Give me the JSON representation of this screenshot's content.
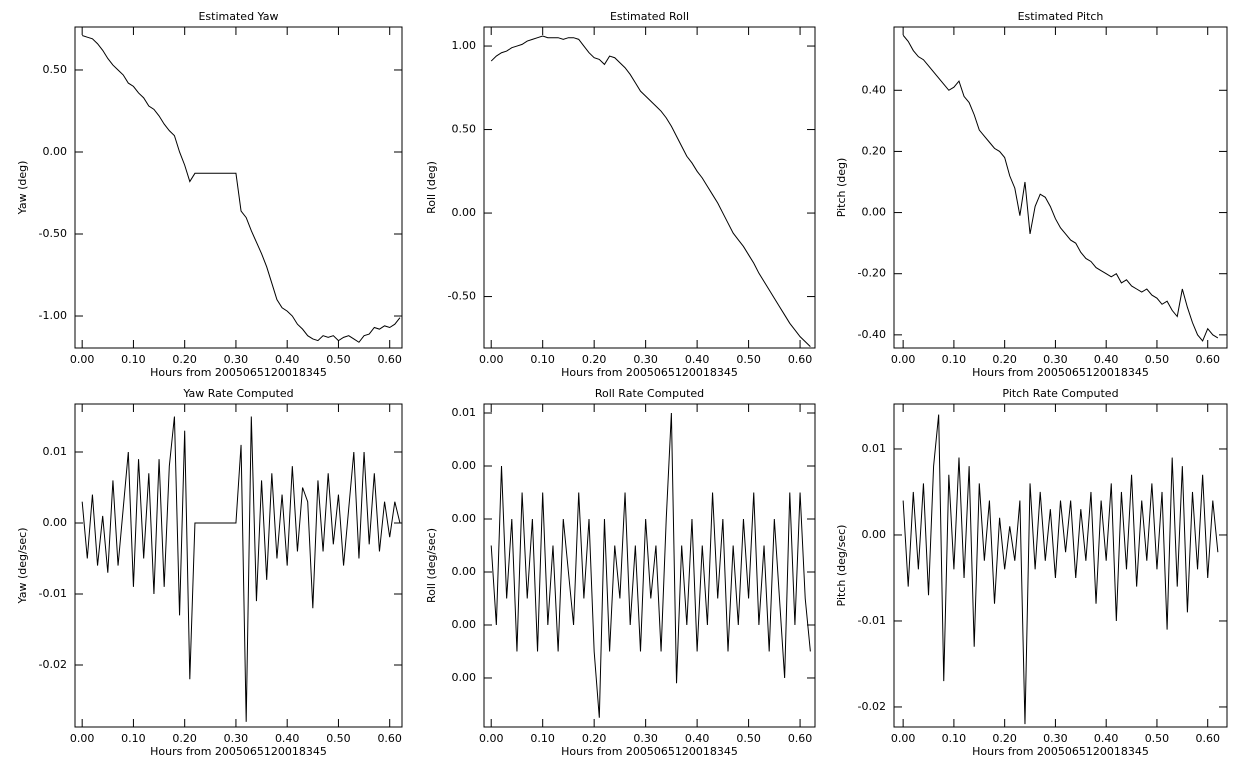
{
  "chart_data": [
    {
      "type": "line",
      "title": "Estimated Yaw",
      "xlabel": "Hours from 2005065120018345",
      "ylabel": "Yaw (deg)",
      "color": "#000000",
      "xlim": [
        -0.014,
        0.624
      ],
      "ylim": [
        -1.195,
        0.762
      ],
      "xticks": [
        {
          "value": 0,
          "label": "0.00"
        },
        {
          "value": 0.1,
          "label": "0.10"
        },
        {
          "value": 0.2,
          "label": "0.20"
        },
        {
          "value": 0.3,
          "label": "0.30"
        },
        {
          "value": 0.4,
          "label": "0.40"
        },
        {
          "value": 0.5,
          "label": "0.50"
        },
        {
          "value": 0.6,
          "label": "0.60"
        }
      ],
      "yticks": [
        {
          "value": 0.5,
          "label": "0.50"
        },
        {
          "value": 0,
          "label": "0.00"
        },
        {
          "value": -0.5,
          "label": "-0.50"
        },
        {
          "value": -1,
          "label": "-1.00"
        }
      ],
      "x": [
        0,
        0.01,
        0.02,
        0.03,
        0.04,
        0.05,
        0.06,
        0.07,
        0.08,
        0.09,
        0.1,
        0.11,
        0.12,
        0.13,
        0.14,
        0.15,
        0.16,
        0.17,
        0.18,
        0.19,
        0.2,
        0.21,
        0.22,
        0.23,
        0.24,
        0.25,
        0.26,
        0.27,
        0.28,
        0.29,
        0.3,
        0.31,
        0.32,
        0.33,
        0.34,
        0.35,
        0.36,
        0.37,
        0.38,
        0.39,
        0.4,
        0.41,
        0.42,
        0.43,
        0.44,
        0.45,
        0.46,
        0.47,
        0.48,
        0.49,
        0.5,
        0.51,
        0.52,
        0.53,
        0.54,
        0.55,
        0.56,
        0.57,
        0.58,
        0.59,
        0.6,
        0.61,
        0.62
      ],
      "values": [
        0.71,
        0.7,
        0.69,
        0.66,
        0.62,
        0.57,
        0.53,
        0.5,
        0.47,
        0.42,
        0.4,
        0.36,
        0.33,
        0.28,
        0.26,
        0.22,
        0.17,
        0.13,
        0.1,
        0.0,
        -0.08,
        -0.18,
        -0.13,
        -0.13,
        -0.13,
        -0.13,
        -0.13,
        -0.13,
        -0.13,
        -0.13,
        -0.13,
        -0.36,
        -0.4,
        -0.48,
        -0.55,
        -0.62,
        -0.7,
        -0.8,
        -0.9,
        -0.95,
        -0.97,
        -1.0,
        -1.05,
        -1.08,
        -1.12,
        -1.14,
        -1.15,
        -1.12,
        -1.13,
        -1.12,
        -1.15,
        -1.13,
        -1.12,
        -1.14,
        -1.16,
        -1.12,
        -1.11,
        -1.07,
        -1.08,
        -1.06,
        -1.07,
        -1.05,
        -1.01
      ]
    },
    {
      "type": "line",
      "title": "Estimated Roll",
      "xlabel": "Hours from 2005065120018345",
      "ylabel": "Roll (deg)",
      "color": "#000000",
      "xlim": [
        -0.014,
        0.629
      ],
      "ylim": [
        -0.808,
        1.114
      ],
      "xticks": [
        {
          "value": 0,
          "label": "0.00"
        },
        {
          "value": 0.1,
          "label": "0.10"
        },
        {
          "value": 0.2,
          "label": "0.20"
        },
        {
          "value": 0.3,
          "label": "0.30"
        },
        {
          "value": 0.4,
          "label": "0.40"
        },
        {
          "value": 0.5,
          "label": "0.50"
        },
        {
          "value": 0.6,
          "label": "0.60"
        }
      ],
      "yticks": [
        {
          "value": 1,
          "label": "1.00"
        },
        {
          "value": 0.5,
          "label": "0.50"
        },
        {
          "value": 0,
          "label": "0.00"
        },
        {
          "value": -0.5,
          "label": "-0.50"
        }
      ],
      "x": [
        0,
        0.01,
        0.02,
        0.03,
        0.04,
        0.05,
        0.06,
        0.07,
        0.08,
        0.09,
        0.1,
        0.11,
        0.12,
        0.13,
        0.14,
        0.15,
        0.16,
        0.17,
        0.18,
        0.19,
        0.2,
        0.21,
        0.22,
        0.23,
        0.24,
        0.25,
        0.26,
        0.27,
        0.28,
        0.29,
        0.3,
        0.31,
        0.32,
        0.33,
        0.34,
        0.35,
        0.36,
        0.37,
        0.38,
        0.39,
        0.4,
        0.41,
        0.42,
        0.43,
        0.44,
        0.45,
        0.46,
        0.47,
        0.48,
        0.49,
        0.5,
        0.51,
        0.52,
        0.53,
        0.54,
        0.55,
        0.56,
        0.57,
        0.58,
        0.59,
        0.6,
        0.61,
        0.62
      ],
      "values": [
        0.91,
        0.94,
        0.96,
        0.97,
        0.99,
        1.0,
        1.01,
        1.03,
        1.04,
        1.05,
        1.06,
        1.05,
        1.05,
        1.05,
        1.04,
        1.05,
        1.05,
        1.04,
        1.0,
        0.96,
        0.93,
        0.92,
        0.89,
        0.94,
        0.93,
        0.9,
        0.87,
        0.83,
        0.78,
        0.73,
        0.7,
        0.67,
        0.64,
        0.61,
        0.57,
        0.52,
        0.46,
        0.4,
        0.34,
        0.3,
        0.25,
        0.21,
        0.16,
        0.11,
        0.06,
        0.0,
        -0.06,
        -0.12,
        -0.16,
        -0.2,
        -0.25,
        -0.3,
        -0.36,
        -0.41,
        -0.46,
        -0.51,
        -0.56,
        -0.61,
        -0.66,
        -0.7,
        -0.74,
        -0.77,
        -0.8
      ]
    },
    {
      "type": "line",
      "title": "Estimated Pitch",
      "xlabel": "Hours from 2005065120018345",
      "ylabel": "Pitch (deg)",
      "color": "#000000",
      "xlim": [
        -0.018,
        0.638
      ],
      "ylim": [
        -0.443,
        0.607
      ],
      "xticks": [
        {
          "value": 0,
          "label": "0.00"
        },
        {
          "value": 0.1,
          "label": "0.10"
        },
        {
          "value": 0.2,
          "label": "0.20"
        },
        {
          "value": 0.3,
          "label": "0.30"
        },
        {
          "value": 0.4,
          "label": "0.40"
        },
        {
          "value": 0.5,
          "label": "0.50"
        },
        {
          "value": 0.6,
          "label": "0.60"
        }
      ],
      "yticks": [
        {
          "value": 0.4,
          "label": "0.40"
        },
        {
          "value": 0.2,
          "label": "0.20"
        },
        {
          "value": 0,
          "label": "0.00"
        },
        {
          "value": -0.2,
          "label": "-0.20"
        },
        {
          "value": -0.4,
          "label": "-0.40"
        }
      ],
      "x": [
        0,
        0.01,
        0.02,
        0.03,
        0.04,
        0.05,
        0.06,
        0.07,
        0.08,
        0.09,
        0.1,
        0.11,
        0.12,
        0.13,
        0.14,
        0.15,
        0.16,
        0.17,
        0.18,
        0.19,
        0.2,
        0.21,
        0.22,
        0.23,
        0.24,
        0.25,
        0.26,
        0.27,
        0.28,
        0.29,
        0.3,
        0.31,
        0.32,
        0.33,
        0.34,
        0.35,
        0.36,
        0.37,
        0.38,
        0.39,
        0.4,
        0.41,
        0.42,
        0.43,
        0.44,
        0.45,
        0.46,
        0.47,
        0.48,
        0.49,
        0.5,
        0.51,
        0.52,
        0.53,
        0.54,
        0.55,
        0.56,
        0.57,
        0.58,
        0.59,
        0.6,
        0.61,
        0.62
      ],
      "values": [
        0.58,
        0.56,
        0.53,
        0.51,
        0.5,
        0.48,
        0.46,
        0.44,
        0.42,
        0.4,
        0.41,
        0.43,
        0.38,
        0.36,
        0.32,
        0.27,
        0.25,
        0.23,
        0.21,
        0.2,
        0.18,
        0.12,
        0.08,
        -0.01,
        0.1,
        -0.07,
        0.02,
        0.06,
        0.05,
        0.02,
        -0.02,
        -0.05,
        -0.07,
        -0.09,
        -0.1,
        -0.13,
        -0.15,
        -0.16,
        -0.18,
        -0.19,
        -0.2,
        -0.21,
        -0.2,
        -0.23,
        -0.22,
        -0.24,
        -0.25,
        -0.26,
        -0.25,
        -0.27,
        -0.28,
        -0.3,
        -0.29,
        -0.32,
        -0.34,
        -0.25,
        -0.31,
        -0.36,
        -0.4,
        -0.42,
        -0.38,
        -0.4,
        -0.41
      ]
    },
    {
      "type": "line",
      "title": "Yaw Rate Computed",
      "xlabel": "Hours from 2005065120018345",
      "ylabel": "Yaw (deg/sec)",
      "color": "#000000",
      "xlim": [
        -0.014,
        0.624
      ],
      "ylim": [
        -0.02873,
        0.01676
      ],
      "xticks": [
        {
          "value": 0,
          "label": "0.00"
        },
        {
          "value": 0.1,
          "label": "0.10"
        },
        {
          "value": 0.2,
          "label": "0.20"
        },
        {
          "value": 0.3,
          "label": "0.30"
        },
        {
          "value": 0.4,
          "label": "0.40"
        },
        {
          "value": 0.5,
          "label": "0.50"
        },
        {
          "value": 0.6,
          "label": "0.60"
        }
      ],
      "yticks": [
        0.01,
        {
          "value": 0,
          "label": "0.00"
        },
        -0.01,
        -0.02
      ],
      "x": [
        0,
        0.01,
        0.02,
        0.03,
        0.04,
        0.05,
        0.06,
        0.07,
        0.08,
        0.09,
        0.1,
        0.11,
        0.12,
        0.13,
        0.14,
        0.15,
        0.16,
        0.17,
        0.18,
        0.19,
        0.2,
        0.21,
        0.22,
        0.23,
        0.24,
        0.25,
        0.26,
        0.27,
        0.28,
        0.29,
        0.3,
        0.31,
        0.32,
        0.33,
        0.34,
        0.35,
        0.36,
        0.37,
        0.38,
        0.39,
        0.4,
        0.41,
        0.42,
        0.43,
        0.44,
        0.45,
        0.46,
        0.47,
        0.48,
        0.49,
        0.5,
        0.51,
        0.52,
        0.53,
        0.54,
        0.55,
        0.56,
        0.57,
        0.58,
        0.59,
        0.6,
        0.61,
        0.62
      ],
      "values": [
        0.003,
        -0.005,
        0.004,
        -0.006,
        0.001,
        -0.007,
        0.006,
        -0.006,
        0.002,
        0.01,
        -0.009,
        0.009,
        -0.005,
        0.007,
        -0.01,
        0.009,
        -0.009,
        0.008,
        0.015,
        -0.013,
        0.013,
        -0.022,
        0,
        0,
        0,
        0,
        0,
        0,
        0,
        0,
        0,
        0.011,
        -0.028,
        0.015,
        -0.011,
        0.006,
        -0.008,
        0.007,
        -0.005,
        0.004,
        -0.006,
        0.008,
        -0.004,
        0.005,
        0.003,
        -0.012,
        0.006,
        -0.004,
        0.007,
        -0.003,
        0.004,
        -0.006,
        0.002,
        0.01,
        -0.005,
        0.01,
        -0.003,
        0.007,
        -0.004,
        0.003,
        -0.002,
        0.003,
        0
      ]
    },
    {
      "type": "line",
      "title": "Roll Rate Computed",
      "xlabel": "Hours from 2005065120018345",
      "ylabel": "Roll (deg/sec)",
      "color": "#000000",
      "xlim": [
        -0.014,
        0.629
      ],
      "ylim": [
        -0.00585,
        0.00634
      ],
      "xticks": [
        {
          "value": 0,
          "label": "0.00"
        },
        {
          "value": 0.1,
          "label": "0.10"
        },
        {
          "value": 0.2,
          "label": "0.20"
        },
        {
          "value": 0.3,
          "label": "0.30"
        },
        {
          "value": 0.4,
          "label": "0.40"
        },
        {
          "value": 0.5,
          "label": "0.50"
        },
        {
          "value": 0.6,
          "label": "0.60"
        }
      ],
      "yticks": [
        {
          "value": 0.006,
          "label": "0.01"
        },
        {
          "value": 0.004,
          "label": "0.00"
        },
        {
          "value": 0.002,
          "label": "0.00"
        },
        {
          "value": 0,
          "label": "0.00"
        },
        {
          "value": -0.002,
          "label": "0.00"
        },
        {
          "value": -0.004,
          "label": "0.00"
        }
      ],
      "x": [
        0,
        0.01,
        0.02,
        0.03,
        0.04,
        0.05,
        0.06,
        0.07,
        0.08,
        0.09,
        0.1,
        0.11,
        0.12,
        0.13,
        0.14,
        0.15,
        0.16,
        0.17,
        0.18,
        0.19,
        0.2,
        0.21,
        0.22,
        0.23,
        0.24,
        0.25,
        0.26,
        0.27,
        0.28,
        0.29,
        0.3,
        0.31,
        0.32,
        0.33,
        0.34,
        0.35,
        0.36,
        0.37,
        0.38,
        0.39,
        0.4,
        0.41,
        0.42,
        0.43,
        0.44,
        0.45,
        0.46,
        0.47,
        0.48,
        0.49,
        0.5,
        0.51,
        0.52,
        0.53,
        0.54,
        0.55,
        0.56,
        0.57,
        0.58,
        0.59,
        0.6,
        0.61,
        0.62
      ],
      "values": [
        0.001,
        -0.002,
        0.004,
        -0.001,
        0.002,
        -0.003,
        0.003,
        -0.001,
        0.002,
        -0.003,
        0.003,
        -0.002,
        0.001,
        -0.003,
        0.002,
        0,
        -0.002,
        0.003,
        -0.001,
        0.002,
        -0.003,
        -0.0055,
        0.002,
        -0.003,
        0.001,
        -0.001,
        0.003,
        -0.002,
        0.001,
        -0.003,
        0.002,
        -0.001,
        0.001,
        -0.003,
        0.002,
        0.006,
        -0.0042,
        0.001,
        -0.002,
        0.002,
        -0.003,
        0.001,
        -0.002,
        0.003,
        -0.001,
        0.002,
        -0.003,
        0.001,
        -0.002,
        0.002,
        -0.001,
        0.003,
        -0.002,
        0.001,
        -0.003,
        0.002,
        -0.001,
        -0.004,
        0.003,
        -0.002,
        0.003,
        -0.001,
        -0.003
      ]
    },
    {
      "type": "line",
      "title": "Pitch Rate Computed",
      "xlabel": "Hours from 2005065120018345",
      "ylabel": "Pitch (deg/sec)",
      "color": "#000000",
      "xlim": [
        -0.018,
        0.638
      ],
      "ylim": [
        -0.02233,
        0.01523
      ],
      "xticks": [
        {
          "value": 0,
          "label": "0.00"
        },
        {
          "value": 0.1,
          "label": "0.10"
        },
        {
          "value": 0.2,
          "label": "0.20"
        },
        {
          "value": 0.3,
          "label": "0.30"
        },
        {
          "value": 0.4,
          "label": "0.40"
        },
        {
          "value": 0.5,
          "label": "0.50"
        },
        {
          "value": 0.6,
          "label": "0.60"
        }
      ],
      "yticks": [
        0.01,
        {
          "value": 0,
          "label": "0.00"
        },
        -0.01,
        -0.02
      ],
      "x": [
        0,
        0.01,
        0.02,
        0.03,
        0.04,
        0.05,
        0.06,
        0.07,
        0.08,
        0.09,
        0.1,
        0.11,
        0.12,
        0.13,
        0.14,
        0.15,
        0.16,
        0.17,
        0.18,
        0.19,
        0.2,
        0.21,
        0.22,
        0.23,
        0.24,
        0.25,
        0.26,
        0.27,
        0.28,
        0.29,
        0.3,
        0.31,
        0.32,
        0.33,
        0.34,
        0.35,
        0.36,
        0.37,
        0.38,
        0.39,
        0.4,
        0.41,
        0.42,
        0.43,
        0.44,
        0.45,
        0.46,
        0.47,
        0.48,
        0.49,
        0.5,
        0.51,
        0.52,
        0.53,
        0.54,
        0.55,
        0.56,
        0.57,
        0.58,
        0.59,
        0.6,
        0.61,
        0.62
      ],
      "values": [
        0.004,
        -0.006,
        0.005,
        -0.004,
        0.006,
        -0.007,
        0.008,
        0.014,
        -0.017,
        0.007,
        -0.004,
        0.009,
        -0.005,
        0.008,
        -0.013,
        0.006,
        -0.003,
        0.004,
        -0.008,
        0.002,
        -0.004,
        0.001,
        -0.003,
        0.004,
        -0.022,
        0.006,
        -0.004,
        0.005,
        -0.003,
        0.003,
        -0.005,
        0.004,
        -0.002,
        0.004,
        -0.005,
        0.003,
        -0.003,
        0.005,
        -0.008,
        0.004,
        -0.003,
        0.006,
        -0.01,
        0.005,
        -0.004,
        0.007,
        -0.006,
        0.004,
        -0.003,
        0.006,
        -0.004,
        0.005,
        -0.011,
        0.009,
        -0.006,
        0.008,
        -0.009,
        0.005,
        -0.004,
        0.007,
        -0.005,
        0.004,
        -0.002
      ]
    }
  ]
}
